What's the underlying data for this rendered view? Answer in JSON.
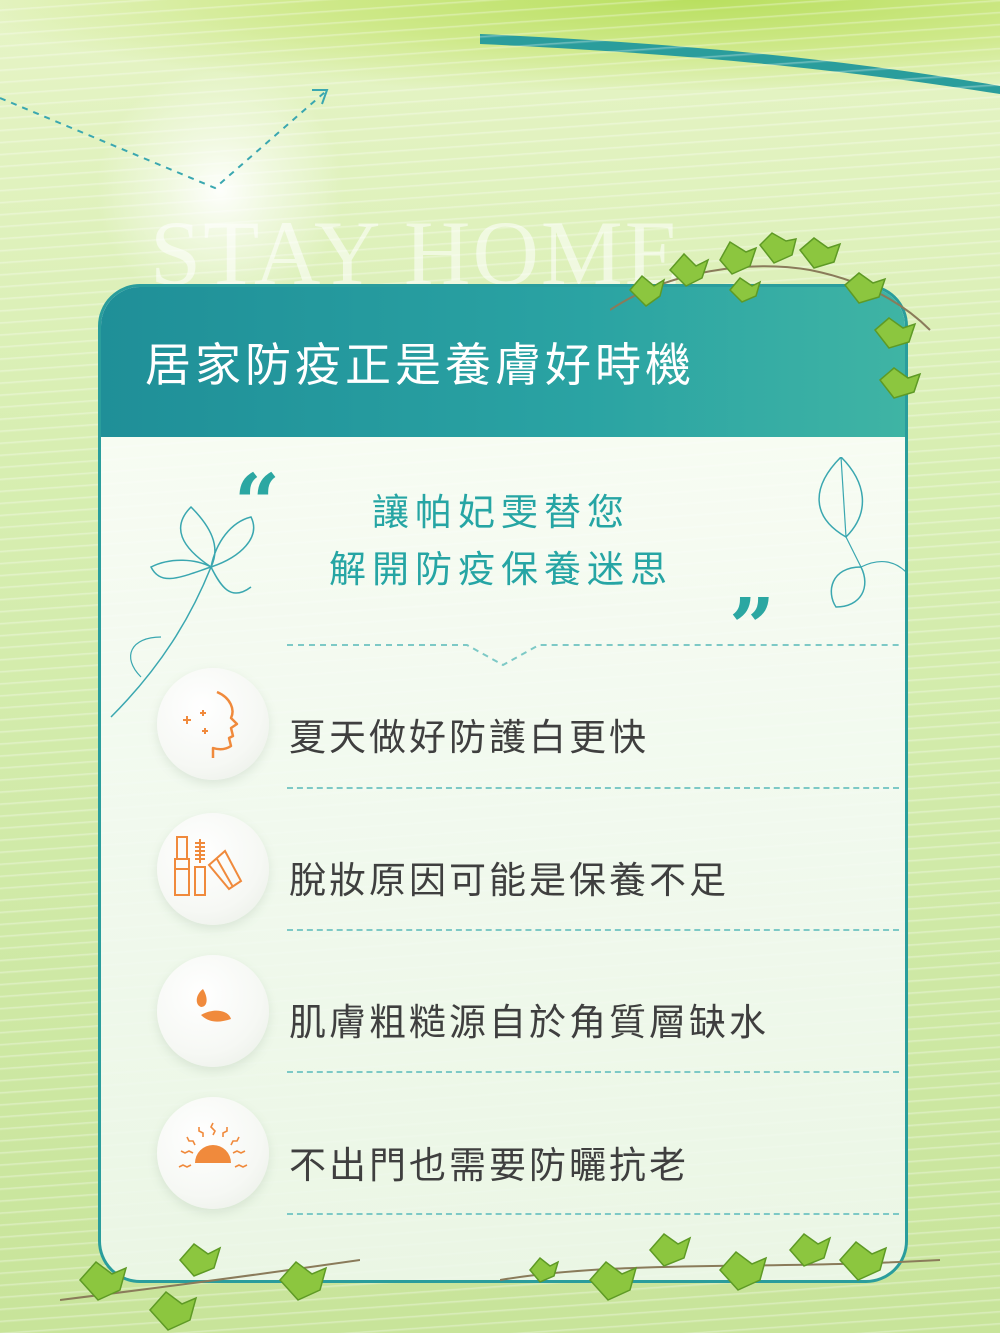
{
  "background": {
    "watermark": "STAY HOME",
    "colors": {
      "teal": "#2a9d9c",
      "orange": "#f08a3c",
      "leaf": "#8cc63f",
      "text": "#3f3f3f"
    }
  },
  "card": {
    "title": "居家防疫正是養膚好時機",
    "headline": [
      "讓帕妃雯替您",
      "解開防疫保養迷思"
    ],
    "quote_open": "“",
    "quote_close": "”",
    "items": [
      {
        "icon": "face-profile-icon",
        "text": "夏天做好防護白更快"
      },
      {
        "icon": "makeup-tools-icon",
        "text": "脫妝原因可能是保養不足"
      },
      {
        "icon": "water-drops-icon",
        "text": "肌膚粗糙源自於角質層缺水"
      },
      {
        "icon": "sunset-icon",
        "text": "不出門也需要防曬抗老"
      }
    ]
  }
}
